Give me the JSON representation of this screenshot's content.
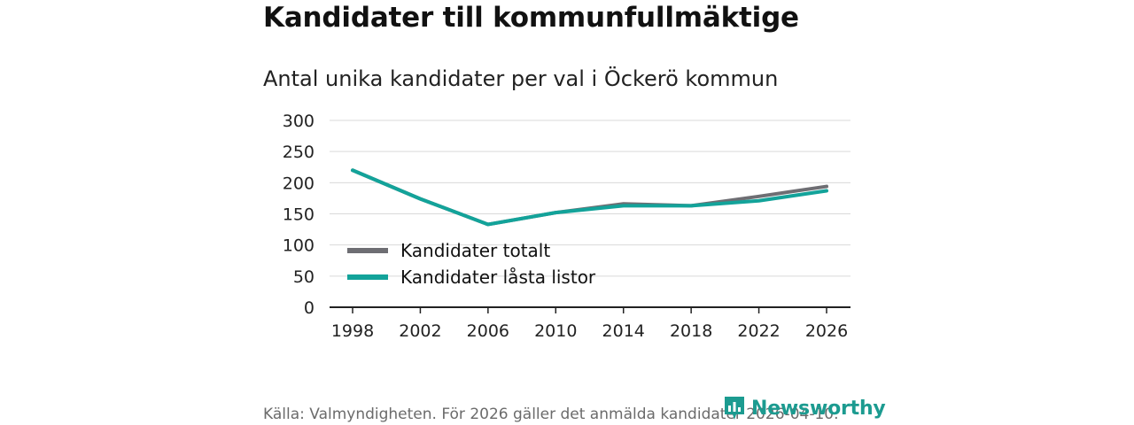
{
  "chart_data": {
    "type": "line",
    "title": "Kandidater till kommunfullmäktige",
    "subtitle": "Antal unika kandidater per val i Öckerö kommun",
    "categories": [
      "1998",
      "2002",
      "2006",
      "2010",
      "2014",
      "2018",
      "2022",
      "2026"
    ],
    "series": [
      {
        "name": "Kandidater totalt",
        "color": "#6e6e73",
        "values": [
          220,
          174,
          133,
          152,
          166,
          163,
          178,
          194
        ]
      },
      {
        "name": "Kandidater låsta listor",
        "color": "#13a39a",
        "values": [
          220,
          174,
          133,
          152,
          163,
          163,
          171,
          187
        ]
      }
    ],
    "ylim": [
      0,
      300
    ],
    "yticks": [
      0,
      50,
      100,
      150,
      200,
      250,
      300
    ],
    "xlabel": "",
    "ylabel": "",
    "grid": true,
    "legend": "bottom-left"
  },
  "footer": {
    "source": "Källa: Valmyndigheten. För 2026 gäller det anmälda kandidater 2026-04-10."
  },
  "brand": {
    "name": "Newsworthy",
    "color": "#1c9b90",
    "icon": "newsworthy-logo-icon"
  }
}
